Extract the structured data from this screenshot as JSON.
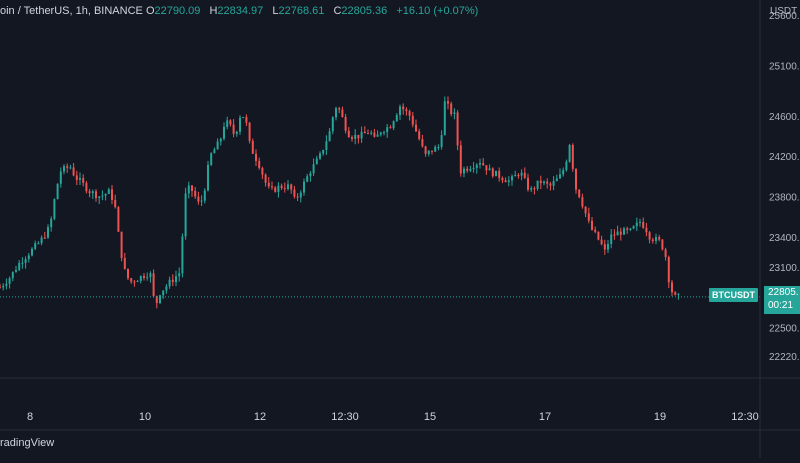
{
  "legend": {
    "symbol": "oin / TetherUS, 1h, BINANCE",
    "o_label": "O",
    "o_value": "22790.09",
    "h_label": "H",
    "h_value": "22834.97",
    "l_label": "L",
    "l_value": "22768.61",
    "c_label": "C",
    "c_value": "22805.36",
    "change": "+16.10 (+0.07%)"
  },
  "branding": "radingView",
  "currency_label": "USDT",
  "symbol_tag": "BTCUSDT",
  "last_price": "22805.",
  "countdown": "00:21",
  "colors": {
    "background": "#131722",
    "up": "#26a69a",
    "down": "#ef5350",
    "grid": "#2a2e39",
    "text": "#d1d4dc"
  },
  "chart_data": {
    "type": "candlestick",
    "y_axis_ticks": [
      "25600",
      "25100",
      "24600",
      "24200",
      "23800",
      "23400",
      "23100",
      "22500",
      "22220"
    ],
    "x_axis_ticks": [
      "8",
      "10",
      "12",
      "12:30",
      "15",
      "17",
      "19",
      "12:30"
    ],
    "ylim": [
      22000,
      25750
    ],
    "last_close": 22805.36,
    "series_close": [
      [
        0,
        22900
      ],
      [
        10,
        23000
      ],
      [
        20,
        23150
      ],
      [
        30,
        23250
      ],
      [
        40,
        23350
      ],
      [
        50,
        23500
      ],
      [
        55,
        23800
      ],
      [
        60,
        24050
      ],
      [
        70,
        24100
      ],
      [
        75,
        24000
      ],
      [
        80,
        23950
      ],
      [
        90,
        23850
      ],
      [
        100,
        23800
      ],
      [
        110,
        23850
      ],
      [
        115,
        23700
      ],
      [
        120,
        23300
      ],
      [
        125,
        23050
      ],
      [
        130,
        22950
      ],
      [
        140,
        23000
      ],
      [
        150,
        23050
      ],
      [
        155,
        22700
      ],
      [
        160,
        22850
      ],
      [
        170,
        22950
      ],
      [
        180,
        23050
      ],
      [
        185,
        23800
      ],
      [
        190,
        23900
      ],
      [
        200,
        23700
      ],
      [
        205,
        23900
      ],
      [
        210,
        24200
      ],
      [
        220,
        24350
      ],
      [
        225,
        24550
      ],
      [
        230,
        24500
      ],
      [
        235,
        24400
      ],
      [
        240,
        24600
      ],
      [
        245,
        24600
      ],
      [
        250,
        24300
      ],
      [
        260,
        24100
      ],
      [
        265,
        23950
      ],
      [
        270,
        23850
      ],
      [
        280,
        23900
      ],
      [
        290,
        23900
      ],
      [
        295,
        23750
      ],
      [
        300,
        23850
      ],
      [
        310,
        24050
      ],
      [
        320,
        24200
      ],
      [
        330,
        24450
      ],
      [
        335,
        24700
      ],
      [
        340,
        24650
      ],
      [
        345,
        24500
      ],
      [
        350,
        24400
      ],
      [
        360,
        24400
      ],
      [
        370,
        24450
      ],
      [
        375,
        24350
      ],
      [
        380,
        24450
      ],
      [
        390,
        24500
      ],
      [
        400,
        24700
      ],
      [
        405,
        24650
      ],
      [
        410,
        24600
      ],
      [
        420,
        24350
      ],
      [
        425,
        24200
      ],
      [
        430,
        24250
      ],
      [
        440,
        24300
      ],
      [
        445,
        24750
      ],
      [
        450,
        24650
      ],
      [
        455,
        24600
      ],
      [
        460,
        24050
      ],
      [
        470,
        24100
      ],
      [
        480,
        24150
      ],
      [
        490,
        24050
      ],
      [
        500,
        24000
      ],
      [
        510,
        23950
      ],
      [
        520,
        24050
      ],
      [
        530,
        23850
      ],
      [
        540,
        23950
      ],
      [
        550,
        23900
      ],
      [
        560,
        24000
      ],
      [
        565,
        24100
      ],
      [
        570,
        24350
      ],
      [
        575,
        23900
      ],
      [
        580,
        23800
      ],
      [
        590,
        23500
      ],
      [
        600,
        23350
      ],
      [
        605,
        23250
      ],
      [
        610,
        23400
      ],
      [
        620,
        23450
      ],
      [
        630,
        23450
      ],
      [
        640,
        23550
      ],
      [
        645,
        23500
      ],
      [
        650,
        23400
      ],
      [
        660,
        23350
      ],
      [
        665,
        23250
      ],
      [
        670,
        22900
      ],
      [
        675,
        22800
      ],
      [
        680,
        22805
      ]
    ]
  }
}
